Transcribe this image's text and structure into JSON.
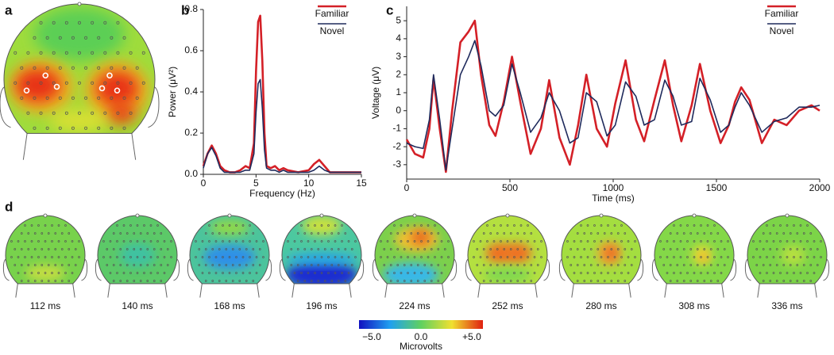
{
  "panel_labels": [
    "a",
    "b",
    "c",
    "d"
  ],
  "chart_data": [
    {
      "type": "line",
      "xlabel": "Frequency (Hz)",
      "ylabel": "Power (μV²)",
      "xlim": [
        0,
        15
      ],
      "xticks": [
        0,
        5,
        10,
        15
      ],
      "ylim": [
        0,
        0.8
      ],
      "yticks": [
        {
          "value": 0,
          "label": "0.0"
        },
        0.2,
        0.4,
        0.6,
        0.8
      ],
      "legend": "top-right",
      "x": [
        0,
        0.4,
        0.8,
        1.2,
        1.6,
        2,
        2.5,
        3,
        3.5,
        4,
        4.4,
        4.8,
        5,
        5.2,
        5.4,
        5.6,
        5.8,
        6,
        6.4,
        6.8,
        7.2,
        7.6,
        8,
        9,
        10,
        10.5,
        11,
        11.5,
        12,
        13,
        14,
        15
      ],
      "series": [
        {
          "name": "Familiar",
          "color": "#d42027",
          "values": [
            0.04,
            0.1,
            0.14,
            0.1,
            0.04,
            0.02,
            0.01,
            0.01,
            0.02,
            0.04,
            0.03,
            0.15,
            0.5,
            0.74,
            0.77,
            0.55,
            0.2,
            0.04,
            0.03,
            0.04,
            0.02,
            0.03,
            0.02,
            0.01,
            0.02,
            0.05,
            0.07,
            0.04,
            0.01,
            0.01,
            0.01,
            0.01
          ]
        },
        {
          "name": "Novel",
          "color": "#1f2a5c",
          "values": [
            0.03,
            0.1,
            0.13,
            0.09,
            0.03,
            0.01,
            0.01,
            0.01,
            0.01,
            0.02,
            0.02,
            0.1,
            0.3,
            0.44,
            0.46,
            0.32,
            0.12,
            0.03,
            0.02,
            0.02,
            0.01,
            0.02,
            0.01,
            0.01,
            0.01,
            0.02,
            0.04,
            0.02,
            0.01,
            0.01,
            0.01,
            0.01
          ]
        }
      ]
    },
    {
      "type": "line",
      "xlabel": "Time (ms)",
      "ylabel": "Voltage (μV)",
      "xlim": [
        0,
        2000
      ],
      "xticks": [
        0,
        500,
        1000,
        1500,
        2000
      ],
      "ylim": [
        -3.8,
        5.8
      ],
      "yticks": [
        -3,
        -2,
        -1,
        0,
        1,
        2,
        3,
        4,
        5
      ],
      "legend": "top-right",
      "x": [
        0,
        40,
        80,
        110,
        130,
        160,
        190,
        220,
        260,
        300,
        330,
        360,
        400,
        430,
        470,
        510,
        550,
        600,
        650,
        690,
        740,
        790,
        830,
        870,
        920,
        970,
        1010,
        1060,
        1110,
        1150,
        1200,
        1250,
        1290,
        1330,
        1380,
        1420,
        1470,
        1520,
        1560,
        1590,
        1620,
        1660,
        1720,
        1780,
        1840,
        1900,
        1960,
        2000
      ],
      "series": [
        {
          "name": "Familiar",
          "color": "#d42027",
          "values": [
            -1.6,
            -2.4,
            -2.6,
            -1,
            1.8,
            -1,
            -3.4,
            0,
            3.8,
            4.4,
            5,
            2,
            -0.8,
            -1.4,
            0.5,
            3,
            0.5,
            -2.4,
            -1,
            1.7,
            -1.5,
            -3,
            -0.8,
            2,
            -1,
            -2,
            0.4,
            2.8,
            -0.5,
            -1.7,
            0.6,
            2.8,
            0.3,
            -1.7,
            0.3,
            2.6,
            0,
            -1.8,
            -0.8,
            0.5,
            1.3,
            0.6,
            -1.8,
            -0.5,
            -0.8,
            0,
            0.3,
            0
          ]
        },
        {
          "name": "Novel",
          "color": "#1f2a5c",
          "values": [
            -1.8,
            -2,
            -2.1,
            -0.5,
            2,
            -0.5,
            -3.3,
            -1,
            2,
            3,
            3.9,
            2.5,
            0,
            -0.3,
            0.3,
            2.6,
            1,
            -1.2,
            -0.4,
            1,
            0,
            -1.8,
            -1.5,
            1,
            0.5,
            -1.4,
            -0.8,
            1.6,
            0.8,
            -0.8,
            -0.5,
            1.7,
            0.8,
            -0.8,
            -0.6,
            1.8,
            0.6,
            -1.2,
            -0.8,
            0.2,
            1,
            0.3,
            -1.2,
            -0.6,
            -0.4,
            0.2,
            0.2,
            0.3
          ]
        }
      ]
    }
  ],
  "topomaps": {
    "times": [
      "112 ms",
      "140 ms",
      "168 ms",
      "196 ms",
      "224 ms",
      "252 ms",
      "280 ms",
      "308 ms",
      "336 ms"
    ],
    "colorbar": {
      "labels": [
        "−5.0",
        "0.0",
        "+5.0"
      ],
      "title": "Microvolts"
    }
  }
}
